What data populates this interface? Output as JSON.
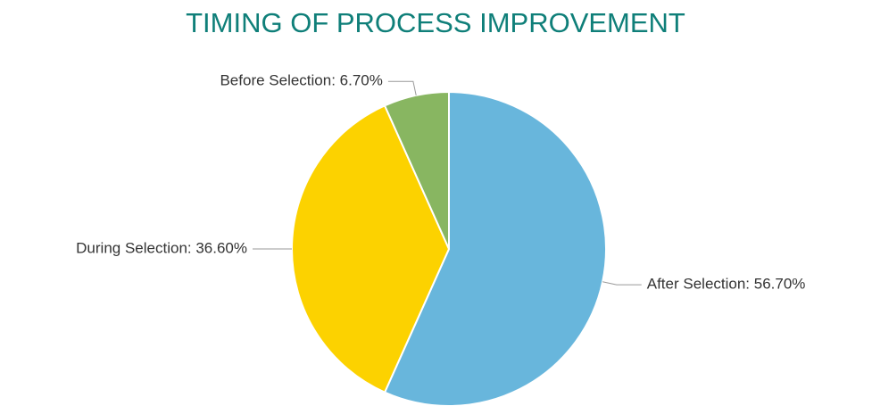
{
  "chart_data": {
    "type": "pie",
    "title": "TIMING OF PROCESS IMPROVEMENT",
    "values": [
      56.7,
      36.6,
      6.7
    ],
    "value_labels": [
      "After Selection: 56.70%",
      "During Selection: 36.60%",
      "Before Selection: 6.70%"
    ],
    "colors": [
      "#68b6dc",
      "#fcd200",
      "#88b661"
    ]
  }
}
